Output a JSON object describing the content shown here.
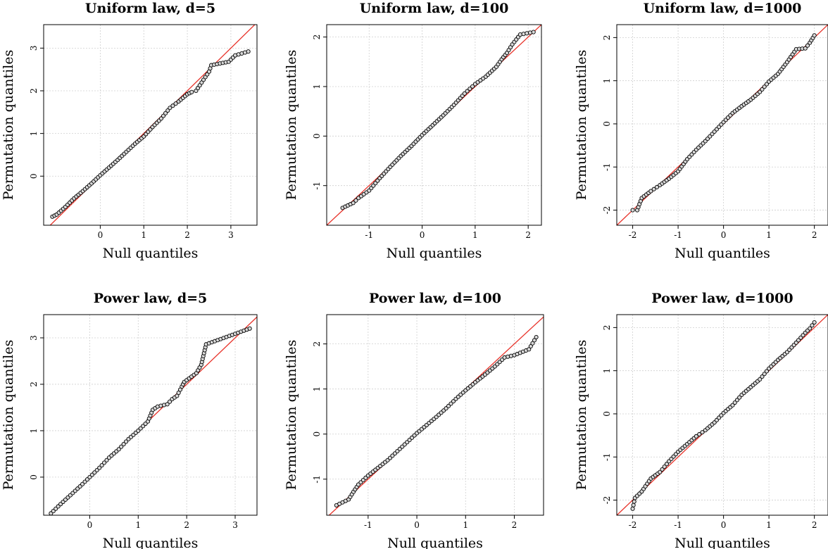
{
  "figure": {
    "x_axis_label": "Null quantiles",
    "y_axis_label": "Permutation quantiles",
    "reference_line_color": "#e8332a",
    "point_stroke_color": "#000000",
    "point_fill_color": "#d9d9d9"
  },
  "chart_data": [
    {
      "type": "scatter",
      "title": "Uniform law, d=5",
      "xlabel": "Null quantiles",
      "ylabel": "Permutation quantiles",
      "xlim": [
        -1.3,
        3.6
      ],
      "ylim": [
        -1.15,
        3.55
      ],
      "xticks": [
        0,
        1,
        2,
        3
      ],
      "yticks": [
        0,
        1,
        2,
        3
      ],
      "grid": true,
      "reference_line": "y = x",
      "series": [
        {
          "x": [
            -1.1,
            -1.0,
            -0.8,
            -0.6,
            -0.4,
            -0.2,
            0.0,
            0.2,
            0.4,
            0.6,
            0.8,
            1.0,
            1.2,
            1.4,
            1.6,
            1.8,
            2.0,
            2.1,
            2.2,
            2.5,
            2.55,
            2.95,
            3.1,
            3.4
          ],
          "y": [
            -0.95,
            -0.9,
            -0.72,
            -0.52,
            -0.35,
            -0.17,
            0.02,
            0.2,
            0.38,
            0.57,
            0.76,
            0.93,
            1.15,
            1.35,
            1.6,
            1.75,
            1.92,
            1.97,
            2.0,
            2.45,
            2.6,
            2.68,
            2.83,
            2.92
          ]
        }
      ]
    },
    {
      "type": "scatter",
      "title": "Uniform law, d=100",
      "xlabel": "Null quantiles",
      "ylabel": "Permutation quantiles",
      "xlim": [
        -1.8,
        2.25
      ],
      "ylim": [
        -1.8,
        2.25
      ],
      "xticks": [
        -1,
        0,
        1,
        2
      ],
      "yticks": [
        -1,
        0,
        1,
        2
      ],
      "grid": true,
      "reference_line": "y = x",
      "series": [
        {
          "x": [
            -1.5,
            -1.3,
            -1.2,
            -1.0,
            -0.8,
            -0.6,
            -0.4,
            -0.2,
            0.0,
            0.2,
            0.4,
            0.6,
            0.8,
            1.0,
            1.2,
            1.4,
            1.5,
            1.6,
            1.7,
            1.85,
            2.1
          ],
          "y": [
            -1.45,
            -1.35,
            -1.25,
            -1.1,
            -0.85,
            -0.62,
            -0.4,
            -0.2,
            0.02,
            0.22,
            0.42,
            0.63,
            0.86,
            1.05,
            1.2,
            1.4,
            1.55,
            1.68,
            1.85,
            2.05,
            2.1
          ]
        }
      ]
    },
    {
      "type": "scatter",
      "title": "Uniform law, d=1000",
      "xlabel": "Null quantiles",
      "ylabel": "Permutation quantiles",
      "xlim": [
        -2.35,
        2.3
      ],
      "ylim": [
        -2.35,
        2.3
      ],
      "xticks": [
        -2,
        -1,
        0,
        1,
        2
      ],
      "yticks": [
        -2,
        -1,
        0,
        1,
        2
      ],
      "grid": true,
      "reference_line": "y = x",
      "series": [
        {
          "x": [
            -2.0,
            -1.9,
            -1.8,
            -1.6,
            -1.4,
            -1.2,
            -1.0,
            -0.8,
            -0.6,
            -0.4,
            -0.2,
            0.0,
            0.2,
            0.4,
            0.6,
            0.8,
            1.0,
            1.2,
            1.4,
            1.6,
            1.8,
            1.9,
            2.0
          ],
          "y": [
            -2.0,
            -2.0,
            -1.72,
            -1.56,
            -1.42,
            -1.27,
            -1.1,
            -0.82,
            -0.6,
            -0.4,
            -0.18,
            0.04,
            0.25,
            0.41,
            0.56,
            0.74,
            0.98,
            1.16,
            1.43,
            1.73,
            1.75,
            1.88,
            2.05
          ]
        }
      ]
    },
    {
      "type": "scatter",
      "title": "Power law, d=5",
      "xlabel": "Null quantiles",
      "ylabel": "Permutation quantiles",
      "xlim": [
        -0.95,
        3.45
      ],
      "ylim": [
        -0.82,
        3.5
      ],
      "xticks": [
        0,
        1,
        2,
        3
      ],
      "yticks": [
        0,
        1,
        2,
        3
      ],
      "grid": true,
      "reference_line": "y = x",
      "series": [
        {
          "x": [
            -0.8,
            -0.6,
            -0.4,
            -0.2,
            0.0,
            0.2,
            0.4,
            0.6,
            0.8,
            1.0,
            1.2,
            1.3,
            1.4,
            1.6,
            1.7,
            1.8,
            1.9,
            1.95,
            2.2,
            2.3,
            2.4,
            3.3
          ],
          "y": [
            -0.78,
            -0.58,
            -0.39,
            -0.2,
            0.0,
            0.2,
            0.42,
            0.6,
            0.82,
            1.0,
            1.2,
            1.45,
            1.52,
            1.57,
            1.68,
            1.75,
            1.95,
            2.05,
            2.24,
            2.42,
            2.86,
            3.2
          ]
        }
      ]
    },
    {
      "type": "scatter",
      "title": "Power law, d=100",
      "xlabel": "Null quantiles",
      "ylabel": "Permutation quantiles",
      "xlim": [
        -1.85,
        2.6
      ],
      "ylim": [
        -1.8,
        2.65
      ],
      "xticks": [
        -1,
        0,
        1,
        2
      ],
      "yticks": [
        -1,
        0,
        1,
        2
      ],
      "grid": true,
      "reference_line": "y = x",
      "series": [
        {
          "x": [
            -1.65,
            -1.4,
            -1.3,
            -1.2,
            -1.0,
            -0.8,
            -0.6,
            -0.4,
            -0.2,
            0.0,
            0.2,
            0.4,
            0.6,
            0.8,
            1.0,
            1.2,
            1.4,
            1.6,
            1.8,
            2.0,
            2.3,
            2.45
          ],
          "y": [
            -1.58,
            -1.45,
            -1.28,
            -1.12,
            -0.92,
            -0.75,
            -0.58,
            -0.38,
            -0.18,
            0.02,
            0.2,
            0.38,
            0.57,
            0.78,
            0.97,
            1.15,
            1.32,
            1.5,
            1.7,
            1.75,
            1.88,
            2.15
          ]
        }
      ]
    },
    {
      "type": "scatter",
      "title": "Power law, d=1000",
      "xlabel": "Null quantiles",
      "ylabel": "Permutation quantiles",
      "xlim": [
        -2.35,
        2.3
      ],
      "ylim": [
        -2.35,
        2.3
      ],
      "xticks": [
        -2,
        -1,
        0,
        1,
        2
      ],
      "yticks": [
        -2,
        -1,
        0,
        1,
        2
      ],
      "grid": true,
      "reference_line": "y = x",
      "series": [
        {
          "x": [
            -2.0,
            -1.95,
            -1.8,
            -1.6,
            -1.4,
            -1.2,
            -1.0,
            -0.8,
            -0.6,
            -0.4,
            -0.2,
            0.0,
            0.2,
            0.4,
            0.6,
            0.8,
            1.0,
            1.2,
            1.4,
            1.6,
            1.8,
            1.9,
            2.0
          ],
          "y": [
            -2.2,
            -1.95,
            -1.8,
            -1.5,
            -1.35,
            -1.1,
            -0.88,
            -0.7,
            -0.52,
            -0.38,
            -0.2,
            0.02,
            0.2,
            0.44,
            0.62,
            0.8,
            1.05,
            1.25,
            1.43,
            1.65,
            1.88,
            1.98,
            2.12
          ]
        }
      ]
    }
  ]
}
